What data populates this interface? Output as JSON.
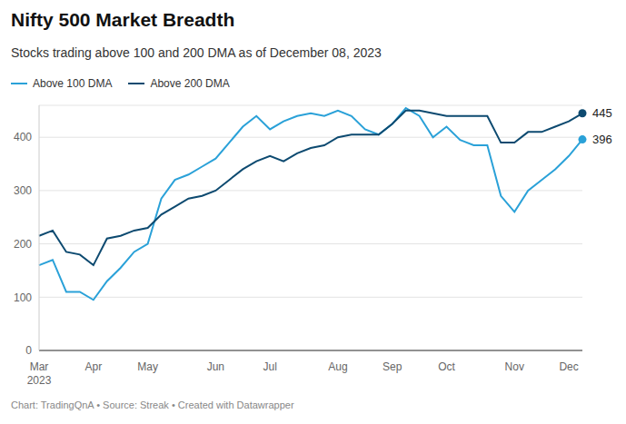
{
  "chart_data": {
    "type": "line",
    "title": "Nifty 500 Market Breadth",
    "subtitle": "Stocks trading above 100 and 200 DMA as of December 08, 2023",
    "source": "Chart: TradingQnA • Source: Streak • Created with Datawrapper",
    "categories": [
      "Mar 2023",
      null,
      null,
      null,
      "Apr",
      null,
      null,
      null,
      "May",
      null,
      null,
      null,
      null,
      "Jun",
      null,
      null,
      null,
      "Jul",
      null,
      null,
      null,
      null,
      "Aug",
      null,
      null,
      null,
      "Sep",
      null,
      null,
      null,
      "Oct",
      null,
      null,
      null,
      null,
      "Nov",
      null,
      null,
      null,
      "Dec",
      null
    ],
    "series": [
      {
        "name": "Above 100 DMA",
        "color": "#2aa1d8",
        "values": [
          160,
          170,
          110,
          110,
          95,
          130,
          155,
          185,
          200,
          285,
          320,
          330,
          345,
          360,
          390,
          420,
          440,
          415,
          430,
          440,
          445,
          440,
          450,
          440,
          415,
          405,
          425,
          455,
          440,
          400,
          420,
          395,
          385,
          385,
          290,
          260,
          300,
          320,
          340,
          365,
          396
        ]
      },
      {
        "name": "Above 200 DMA",
        "color": "#0d4a70",
        "values": [
          215,
          225,
          185,
          180,
          160,
          210,
          215,
          225,
          230,
          255,
          270,
          285,
          290,
          300,
          320,
          340,
          355,
          365,
          355,
          370,
          380,
          385,
          400,
          405,
          405,
          405,
          425,
          450,
          450,
          445,
          440,
          440,
          440,
          440,
          390,
          390,
          410,
          410,
          420,
          430,
          445
        ]
      }
    ],
    "ylim": [
      0,
      460
    ],
    "yticks": [
      0,
      100,
      200,
      300,
      400
    ],
    "grid": true,
    "legend": "top-left",
    "data_labels": true
  }
}
